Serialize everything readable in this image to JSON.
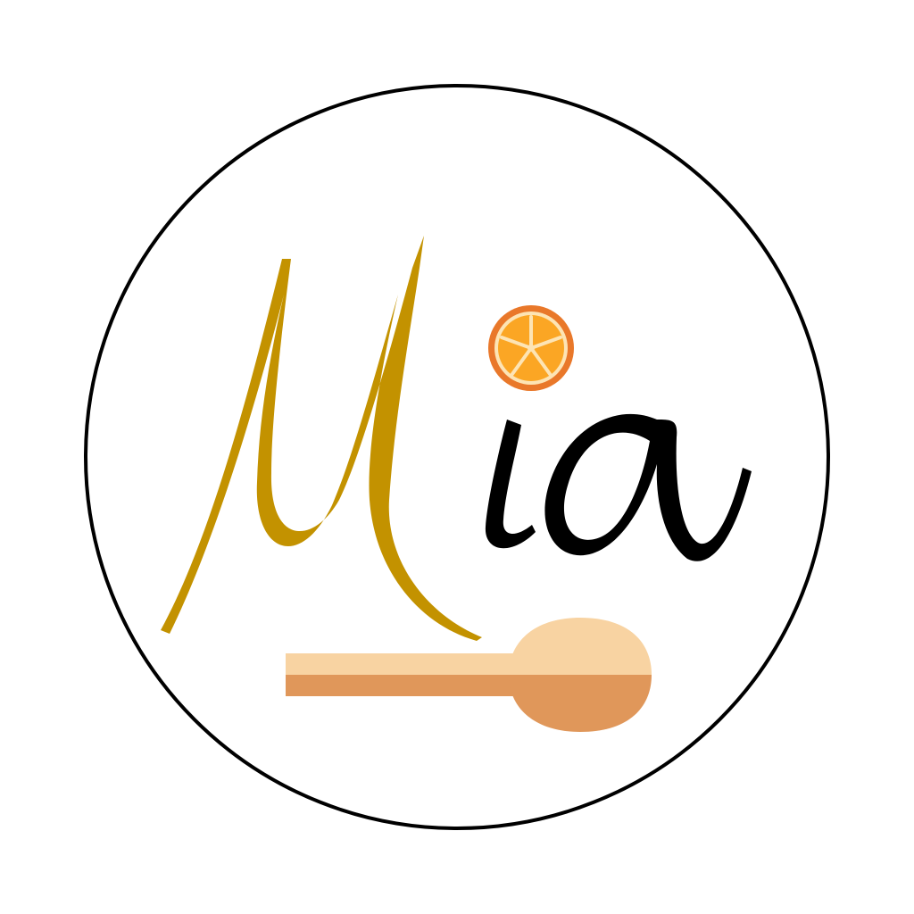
{
  "logo": {
    "wordmark": "Mia",
    "icons": [
      "orange-slice-icon",
      "wooden-spoon-icon"
    ],
    "colors": {
      "ring": "#000000",
      "letter_m": "#c39200",
      "letters_ia": "#000000",
      "orange_rind": "#e9782a",
      "orange_flesh": "#fba624",
      "orange_pith": "#fde4b4",
      "spoon_light": "#f8d3a2",
      "spoon_dark": "#e0975a"
    }
  }
}
